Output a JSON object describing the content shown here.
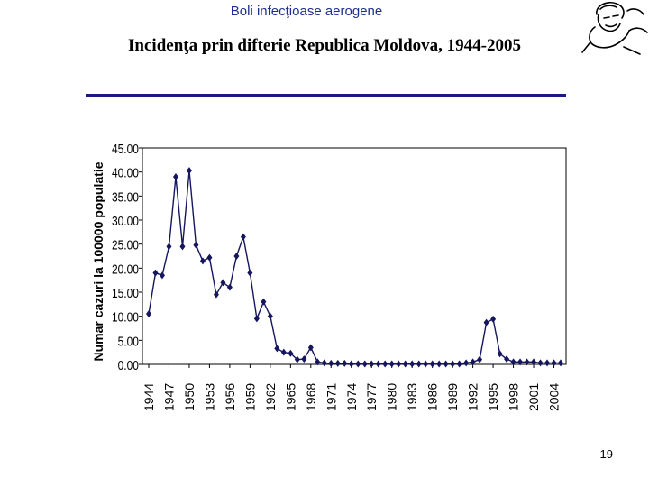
{
  "header": {
    "title": "Boli infecţioase aerogene"
  },
  "slide": {
    "title": "Incidenţa prin difterie Republica Moldova, 1944-2005",
    "page_number": "19"
  },
  "colors": {
    "header_text": "#1f2f8f",
    "rule": "#1a1a80",
    "series": "#16165e"
  },
  "chart_data": {
    "type": "line",
    "title": "",
    "xlabel": "",
    "ylabel": "Numar cazuri la 100000 populatie",
    "ylim": [
      0,
      45
    ],
    "yticks": [
      "0.00",
      "5.00",
      "10.00",
      "15.00",
      "20.00",
      "25.00",
      "30.00",
      "35.00",
      "40.00",
      "45.00"
    ],
    "xticks": [
      "1944",
      "1947",
      "1950",
      "1953",
      "1956",
      "1959",
      "1962",
      "1965",
      "1968",
      "1971",
      "1974",
      "1977",
      "1980",
      "1983",
      "1986",
      "1989",
      "1992",
      "1995",
      "1998",
      "2001",
      "2004"
    ],
    "x": [
      1944,
      1945,
      1946,
      1947,
      1948,
      1949,
      1950,
      1951,
      1952,
      1953,
      1954,
      1955,
      1956,
      1957,
      1958,
      1959,
      1960,
      1961,
      1962,
      1963,
      1964,
      1965,
      1966,
      1967,
      1968,
      1969,
      1970,
      1971,
      1972,
      1973,
      1974,
      1975,
      1976,
      1977,
      1978,
      1979,
      1980,
      1981,
      1982,
      1983,
      1984,
      1985,
      1986,
      1987,
      1988,
      1989,
      1990,
      1991,
      1992,
      1993,
      1994,
      1995,
      1996,
      1997,
      1998,
      1999,
      2000,
      2001,
      2002,
      2003,
      2004,
      2005
    ],
    "series": [
      {
        "name": "Incidenta difterie",
        "values": [
          10.5,
          19,
          18.5,
          24.5,
          39,
          24.5,
          40.3,
          24.8,
          21.5,
          22.2,
          14.5,
          17,
          16,
          22.5,
          26.5,
          19,
          9.5,
          13,
          10,
          3.3,
          2.5,
          2.3,
          1,
          1.1,
          3.5,
          0.5,
          0.3,
          0.2,
          0.2,
          0.2,
          0.1,
          0.1,
          0.1,
          0.1,
          0.1,
          0.1,
          0.1,
          0.1,
          0.1,
          0.1,
          0.1,
          0.1,
          0.1,
          0.1,
          0.1,
          0.1,
          0.1,
          0.3,
          0.5,
          1,
          8.7,
          9.4,
          2.2,
          1.1,
          0.5,
          0.5,
          0.5,
          0.5,
          0.3,
          0.3,
          0.3,
          0.3
        ]
      }
    ]
  }
}
